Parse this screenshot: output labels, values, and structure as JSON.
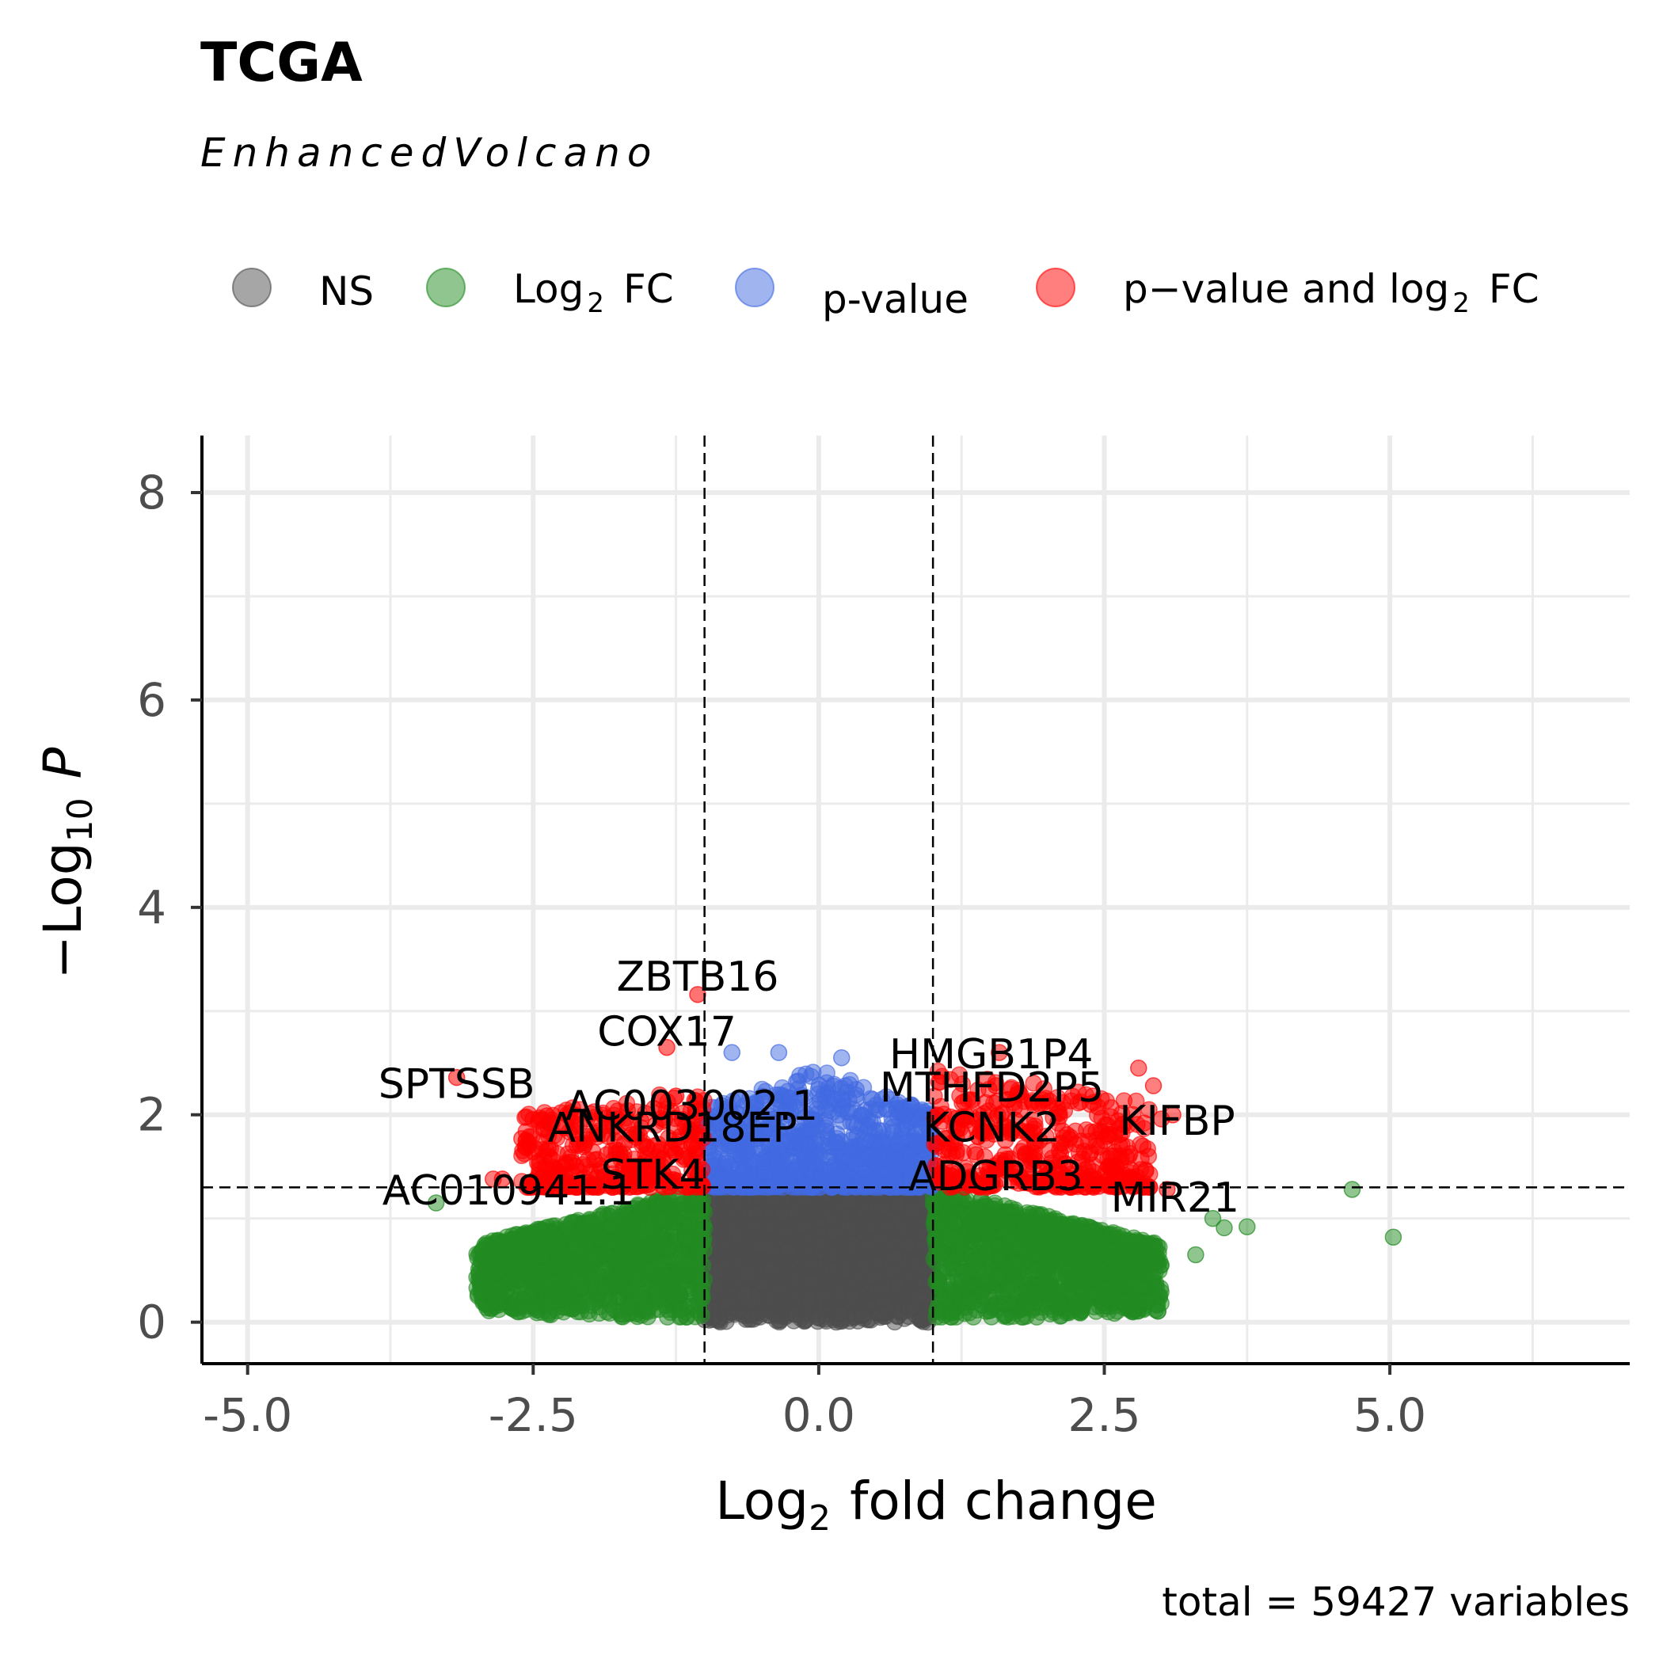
{
  "chart_data": {
    "type": "scatter",
    "title": "TCGA",
    "subtitle": "EnhancedVolcano",
    "caption": "total = 59427 variables",
    "xlabel": {
      "prefix": "Log",
      "sub": "2",
      "rest": "fold change"
    },
    "ylabel": {
      "prefix": "−Log",
      "sub": "10",
      "rest": "P"
    },
    "xlim": [
      -5.4,
      7.1
    ],
    "ylim": [
      -0.4,
      8.55
    ],
    "x_ticks": [
      {
        "value": -5,
        "label": "-5.0"
      },
      {
        "value": -2.5,
        "label": "-2.5"
      },
      {
        "value": 0,
        "label": "0.0"
      },
      {
        "value": 2.5,
        "label": "2.5"
      },
      {
        "value": 5,
        "label": "5.0"
      }
    ],
    "y_ticks": [
      {
        "value": 0,
        "label": "0"
      },
      {
        "value": 2,
        "label": "2"
      },
      {
        "value": 4,
        "label": "4"
      },
      {
        "value": 6,
        "label": "6"
      },
      {
        "value": 8,
        "label": "8"
      }
    ],
    "grid": true,
    "fc_cutoff": 1,
    "p_cutoff_neglog10": 1.3,
    "legend": {
      "position": "top",
      "entries": [
        {
          "key": "NS",
          "label": "NS",
          "color": "#4d4d4d"
        },
        {
          "key": "FC",
          "label_prefix": "Log",
          "label_sub": "2",
          "label_rest": "FC",
          "color": "#228b22"
        },
        {
          "key": "P",
          "label": "p-value",
          "color": "#4169e1"
        },
        {
          "key": "FC_P",
          "label_prefix": "p−value  and  log",
          "label_sub": "2",
          "label_rest": "FC",
          "color": "#ff0000"
        }
      ]
    },
    "colors": {
      "NS": "#4d4d4d",
      "FC": "#228b22",
      "P": "#4169e1",
      "FC_P": "#ff0000"
    },
    "labeled_points": [
      {
        "gene": "ZBTB16",
        "x": -1.06,
        "y": 3.16
      },
      {
        "gene": "COX17",
        "x": -1.33,
        "y": 2.65
      },
      {
        "gene": "SPTSSB",
        "x": -3.17,
        "y": 2.36
      },
      {
        "gene": "AC003002.1",
        "x": -1.25,
        "y": 2.18
      },
      {
        "gene": "ANKRD18EP",
        "x": -1.35,
        "y": 1.95
      },
      {
        "gene": "STK4",
        "x": -1.52,
        "y": 1.5
      },
      {
        "gene": "AC010941.1",
        "x": -2.77,
        "y": 1.38
      },
      {
        "gene": "HMGB1P4",
        "x": 1.58,
        "y": 2.6
      },
      {
        "gene": "MTHFD2P5",
        "x": 1.55,
        "y": 2.28
      },
      {
        "gene": "KCNK2",
        "x": 1.72,
        "y": 1.95
      },
      {
        "gene": "KIFBP",
        "x": 3.0,
        "y": 1.96
      },
      {
        "gene": "ADGRB3",
        "x": 1.55,
        "y": 1.48
      },
      {
        "gene": "MIR21",
        "x": 3.05,
        "y": 1.28
      }
    ],
    "outlier_points": [
      {
        "x": 4.67,
        "y": 1.28,
        "group": "FC"
      },
      {
        "x": 5.03,
        "y": 0.82,
        "group": "FC"
      },
      {
        "x": 3.75,
        "y": 0.92,
        "group": "FC"
      },
      {
        "x": 3.55,
        "y": 0.91,
        "group": "FC"
      },
      {
        "x": 3.3,
        "y": 0.65,
        "group": "FC"
      },
      {
        "x": 3.45,
        "y": 1.0,
        "group": "FC"
      },
      {
        "x": -3.35,
        "y": 1.15,
        "group": "FC"
      },
      {
        "x": -2.7,
        "y": 0.6,
        "group": "FC"
      },
      {
        "x": -2.72,
        "y": 0.75,
        "group": "FC"
      },
      {
        "x": -2.6,
        "y": 1.77,
        "group": "FC_P"
      },
      {
        "x": -2.85,
        "y": 1.38,
        "group": "FC_P"
      },
      {
        "x": 2.8,
        "y": 2.45,
        "group": "FC_P"
      },
      {
        "x": 2.93,
        "y": 2.28,
        "group": "FC_P"
      },
      {
        "x": 2.4,
        "y": 2.18,
        "group": "FC_P"
      },
      {
        "x": 2.5,
        "y": 1.75,
        "group": "FC_P"
      },
      {
        "x": 3.1,
        "y": 2.0,
        "group": "FC_P"
      },
      {
        "x": 0.2,
        "y": 2.55,
        "group": "P"
      },
      {
        "x": -0.35,
        "y": 2.6,
        "group": "P"
      },
      {
        "x": -0.76,
        "y": 2.6,
        "group": "P"
      },
      {
        "x": 0.9,
        "y": 1.82,
        "group": "P"
      }
    ],
    "clouds": [
      {
        "group": "NS",
        "count": 2400,
        "x_range": [
          -1.0,
          1.0
        ],
        "y_max": 1.3,
        "spread": 0.55,
        "seed": 11
      },
      {
        "group": "FC",
        "count": 1300,
        "x_range": [
          1.0,
          3.0
        ],
        "y_max": 1.3,
        "spread": 0.7,
        "seed": 23
      },
      {
        "group": "FC",
        "count": 1300,
        "x_range": [
          -3.0,
          -1.0
        ],
        "y_max": 1.3,
        "spread": 0.7,
        "seed": 37
      },
      {
        "group": "P",
        "count": 900,
        "x_range": [
          -1.0,
          1.0
        ],
        "y_min": 1.3,
        "y_max": 2.45,
        "spread": 0.6,
        "seed": 41
      },
      {
        "group": "FC_P",
        "count": 450,
        "x_range": [
          1.0,
          2.9
        ],
        "y_min": 1.3,
        "y_max": 2.6,
        "spread": 0.55,
        "seed": 53
      },
      {
        "group": "FC_P",
        "count": 380,
        "x_range": [
          -2.6,
          -1.0
        ],
        "y_min": 1.3,
        "y_max": 2.4,
        "spread": 0.55,
        "seed": 67
      }
    ]
  }
}
